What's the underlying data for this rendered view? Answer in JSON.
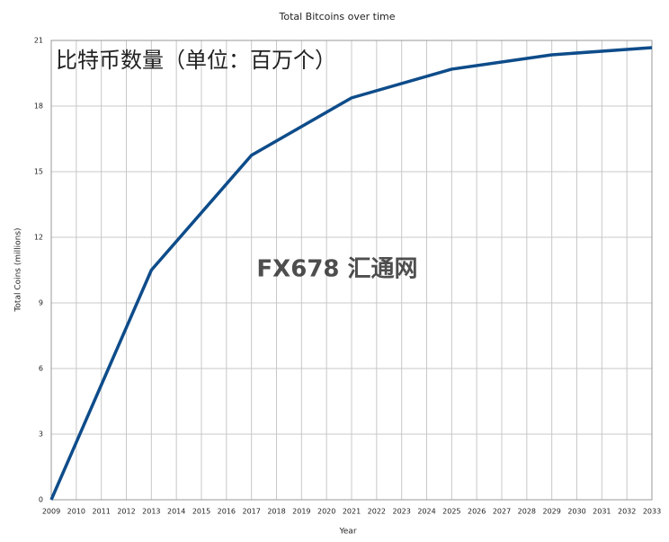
{
  "chart_data": {
    "type": "line",
    "title": "Total Bitcoins over time",
    "annotation": "比特币数量（单位：百万个）",
    "watermark": "FX678 汇通网",
    "xlabel": "Year",
    "ylabel": "Total Coins (millions)",
    "x": [
      2009,
      2013,
      2017,
      2021,
      2025,
      2029,
      2033
    ],
    "series": [
      {
        "name": "Total Coins",
        "color": "#0e4c8a",
        "values": [
          0,
          10.5,
          15.75,
          18.375,
          19.6875,
          20.34375,
          20.671875
        ]
      }
    ],
    "xlim": [
      2009,
      2033
    ],
    "xticks": [
      2009,
      2010,
      2011,
      2012,
      2013,
      2014,
      2015,
      2016,
      2017,
      2018,
      2019,
      2020,
      2021,
      2022,
      2023,
      2024,
      2025,
      2026,
      2027,
      2028,
      2029,
      2030,
      2031,
      2032,
      2033
    ],
    "ylim": [
      0,
      21
    ],
    "yticks": [
      0,
      3,
      6,
      9,
      12,
      15,
      18,
      21
    ],
    "grid": true
  }
}
